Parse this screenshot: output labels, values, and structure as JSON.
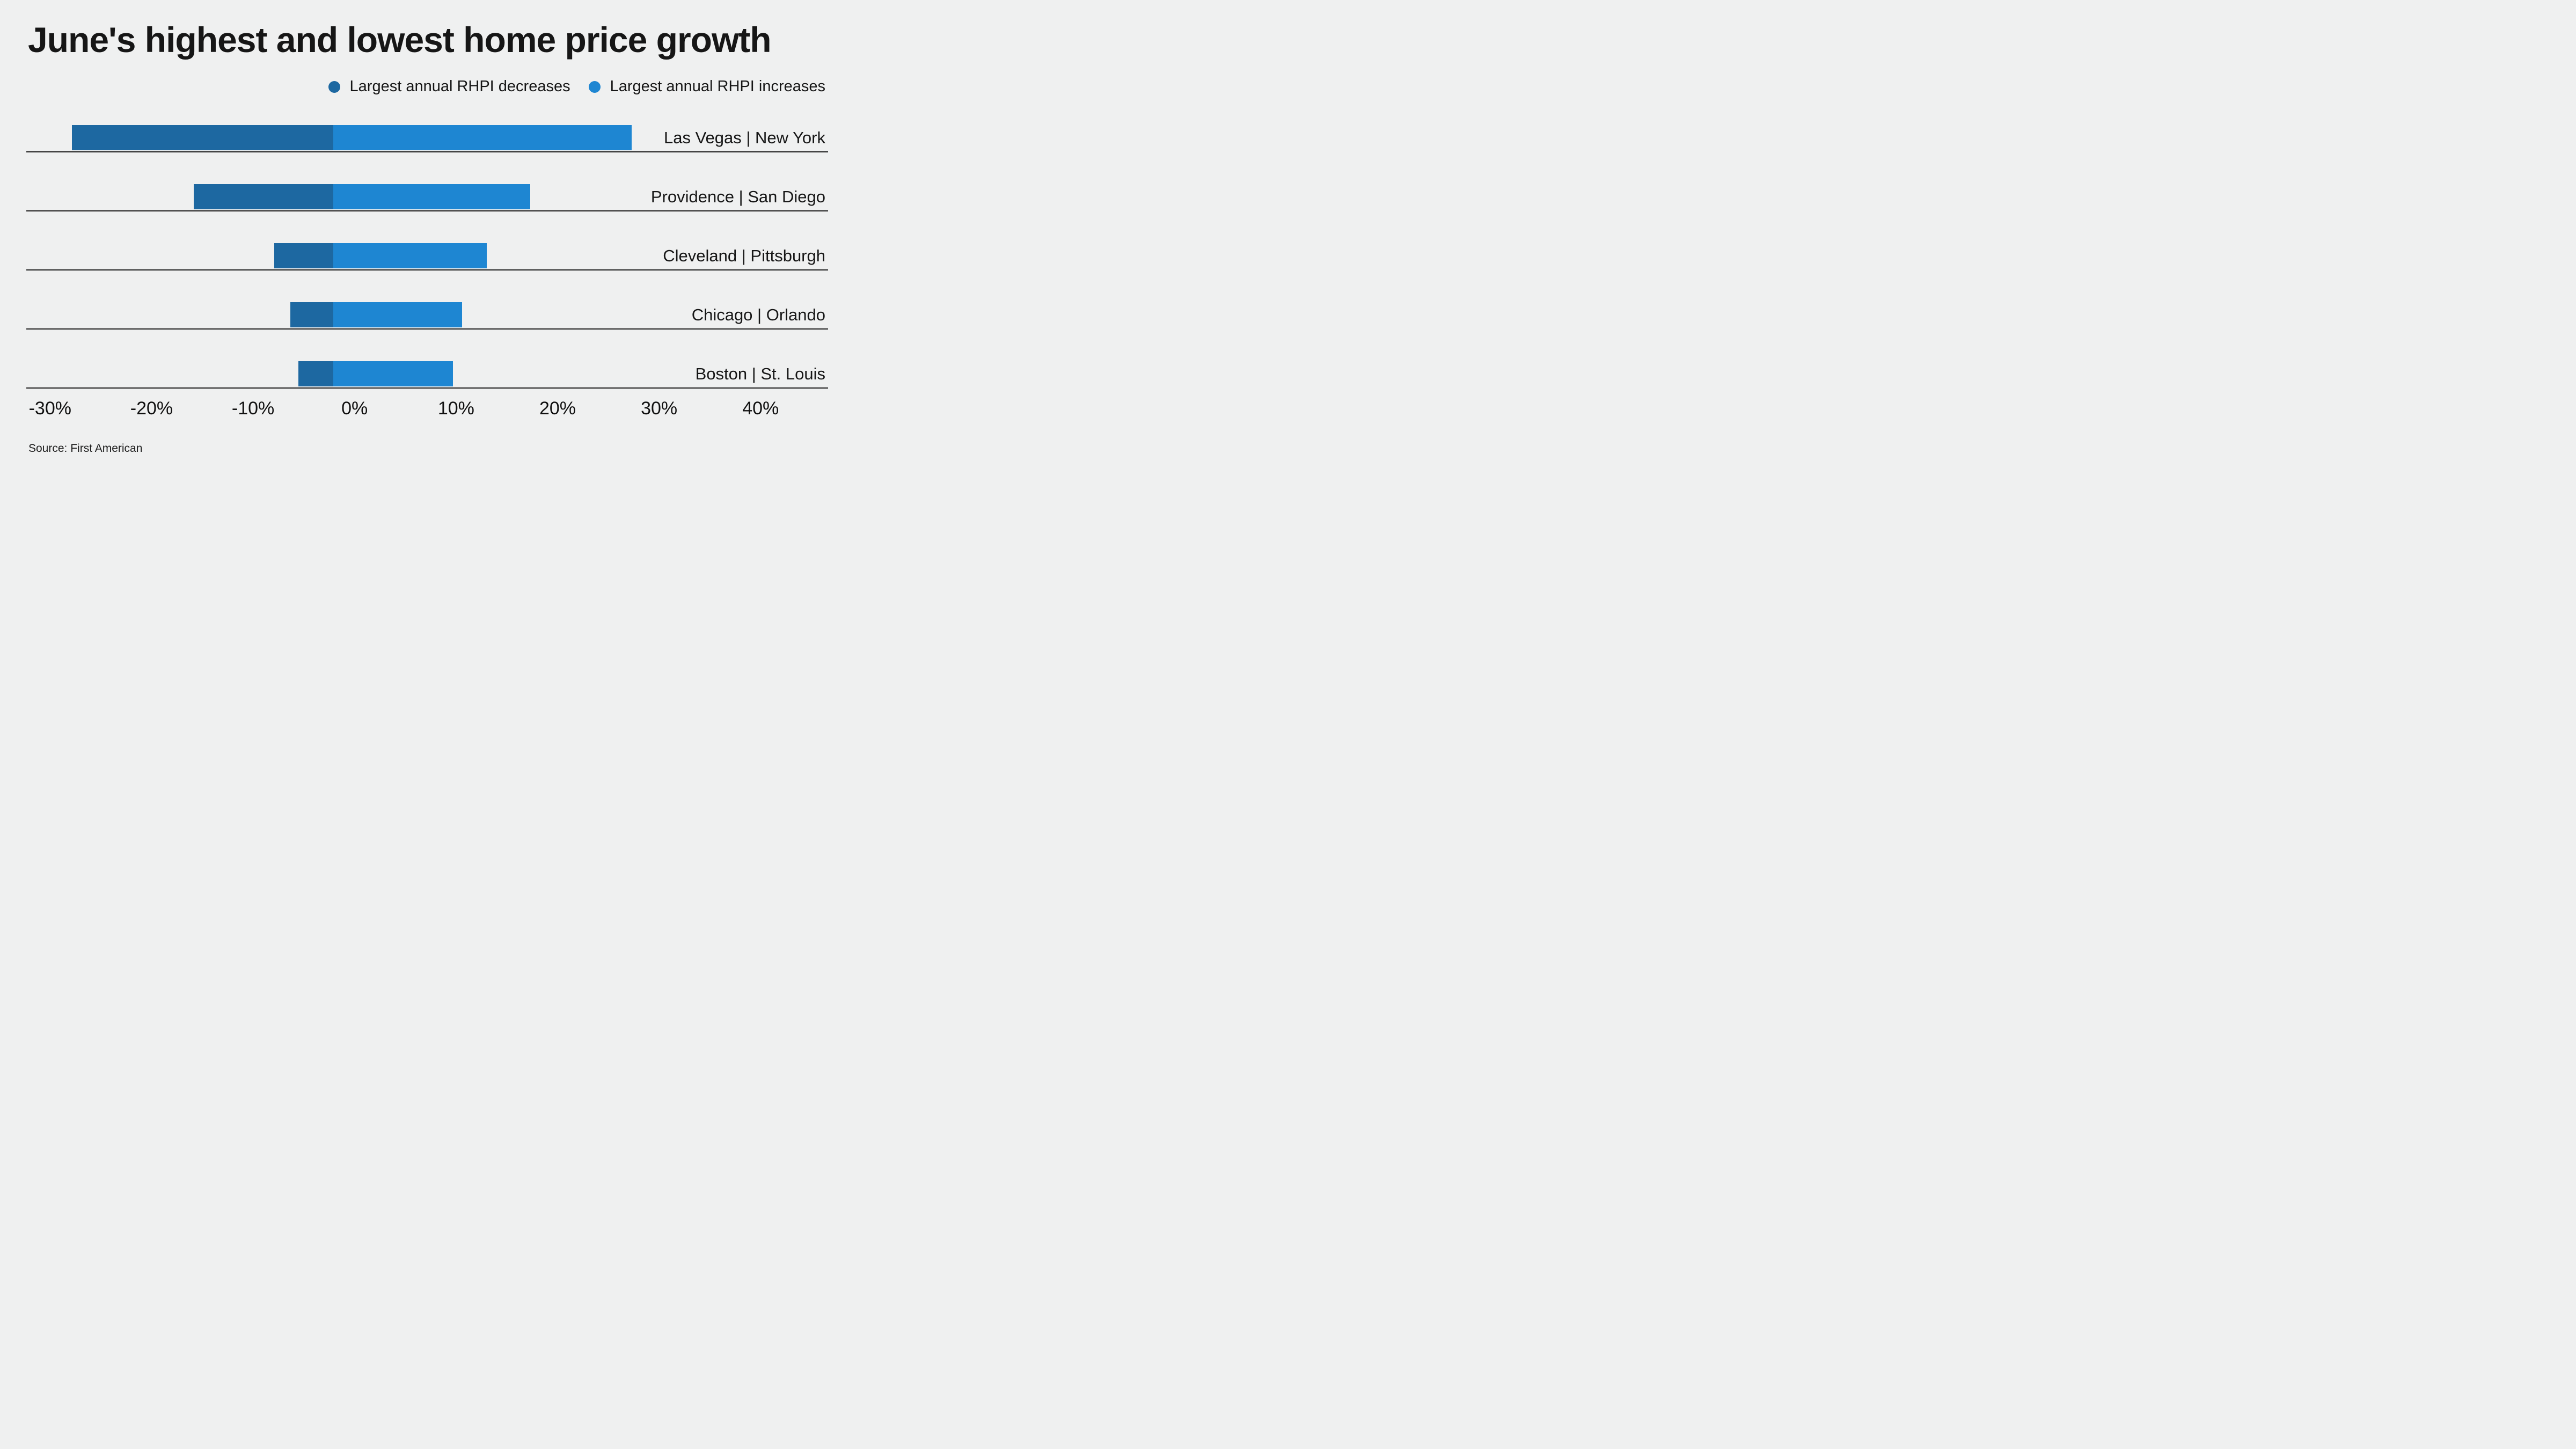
{
  "title": "June's highest and lowest home price growth",
  "source_note": "Source: First American",
  "colors": {
    "decrease": "#1d68a1",
    "increase": "#1e86d2",
    "background": "#eff0f0",
    "row_line": "#1a1a1a",
    "text": "#161616"
  },
  "legend": {
    "decreases": {
      "label": "Largest annual RHPI decreases",
      "color": "#1d68a1",
      "dot": "circle-dot-icon"
    },
    "increases": {
      "label": "Largest annual RHPI increases",
      "color": "#1e86d2",
      "dot": "circle-dot-icon"
    }
  },
  "chart_data": {
    "type": "bar",
    "orientation": "horizontal-diverging",
    "title": "June's highest and lowest home price growth",
    "legend_entries": [
      "Largest annual RHPI decreases",
      "Largest annual RHPI increases"
    ],
    "legend_position": "top-right",
    "grid": "row-baselines-only",
    "unit": "percent",
    "x_axis": {
      "ticks": [
        "-30%",
        "-20%",
        "-10%",
        "0%",
        "10%",
        "20%",
        "30%",
        "40%"
      ],
      "tick_values": [
        -30,
        -20,
        -10,
        0,
        10,
        20,
        30,
        40
      ],
      "range": [
        -33,
        45
      ]
    },
    "rows": [
      {
        "label": "Las Vegas | New York",
        "decrease_city": "Las Vegas",
        "increase_city": "New York",
        "decrease": -25.7,
        "increase": 29.4
      },
      {
        "label": "Providence | San Diego",
        "decrease_city": "Providence",
        "increase_city": "San Diego",
        "decrease": -13.7,
        "increase": 19.4
      },
      {
        "label": "Cleveland | Pittsburgh",
        "decrease_city": "Cleveland",
        "increase_city": "Pittsburgh",
        "decrease": -5.8,
        "increase": 15.1
      },
      {
        "label": "Chicago | Orlando",
        "decrease_city": "Chicago",
        "increase_city": "Orlando",
        "decrease": -4.2,
        "increase": 12.7
      },
      {
        "label": "Boston | St. Louis",
        "decrease_city": "Boston",
        "increase_city": "St. Louis",
        "decrease": -3.4,
        "increase": 11.8
      }
    ],
    "source": "Source: First American"
  }
}
